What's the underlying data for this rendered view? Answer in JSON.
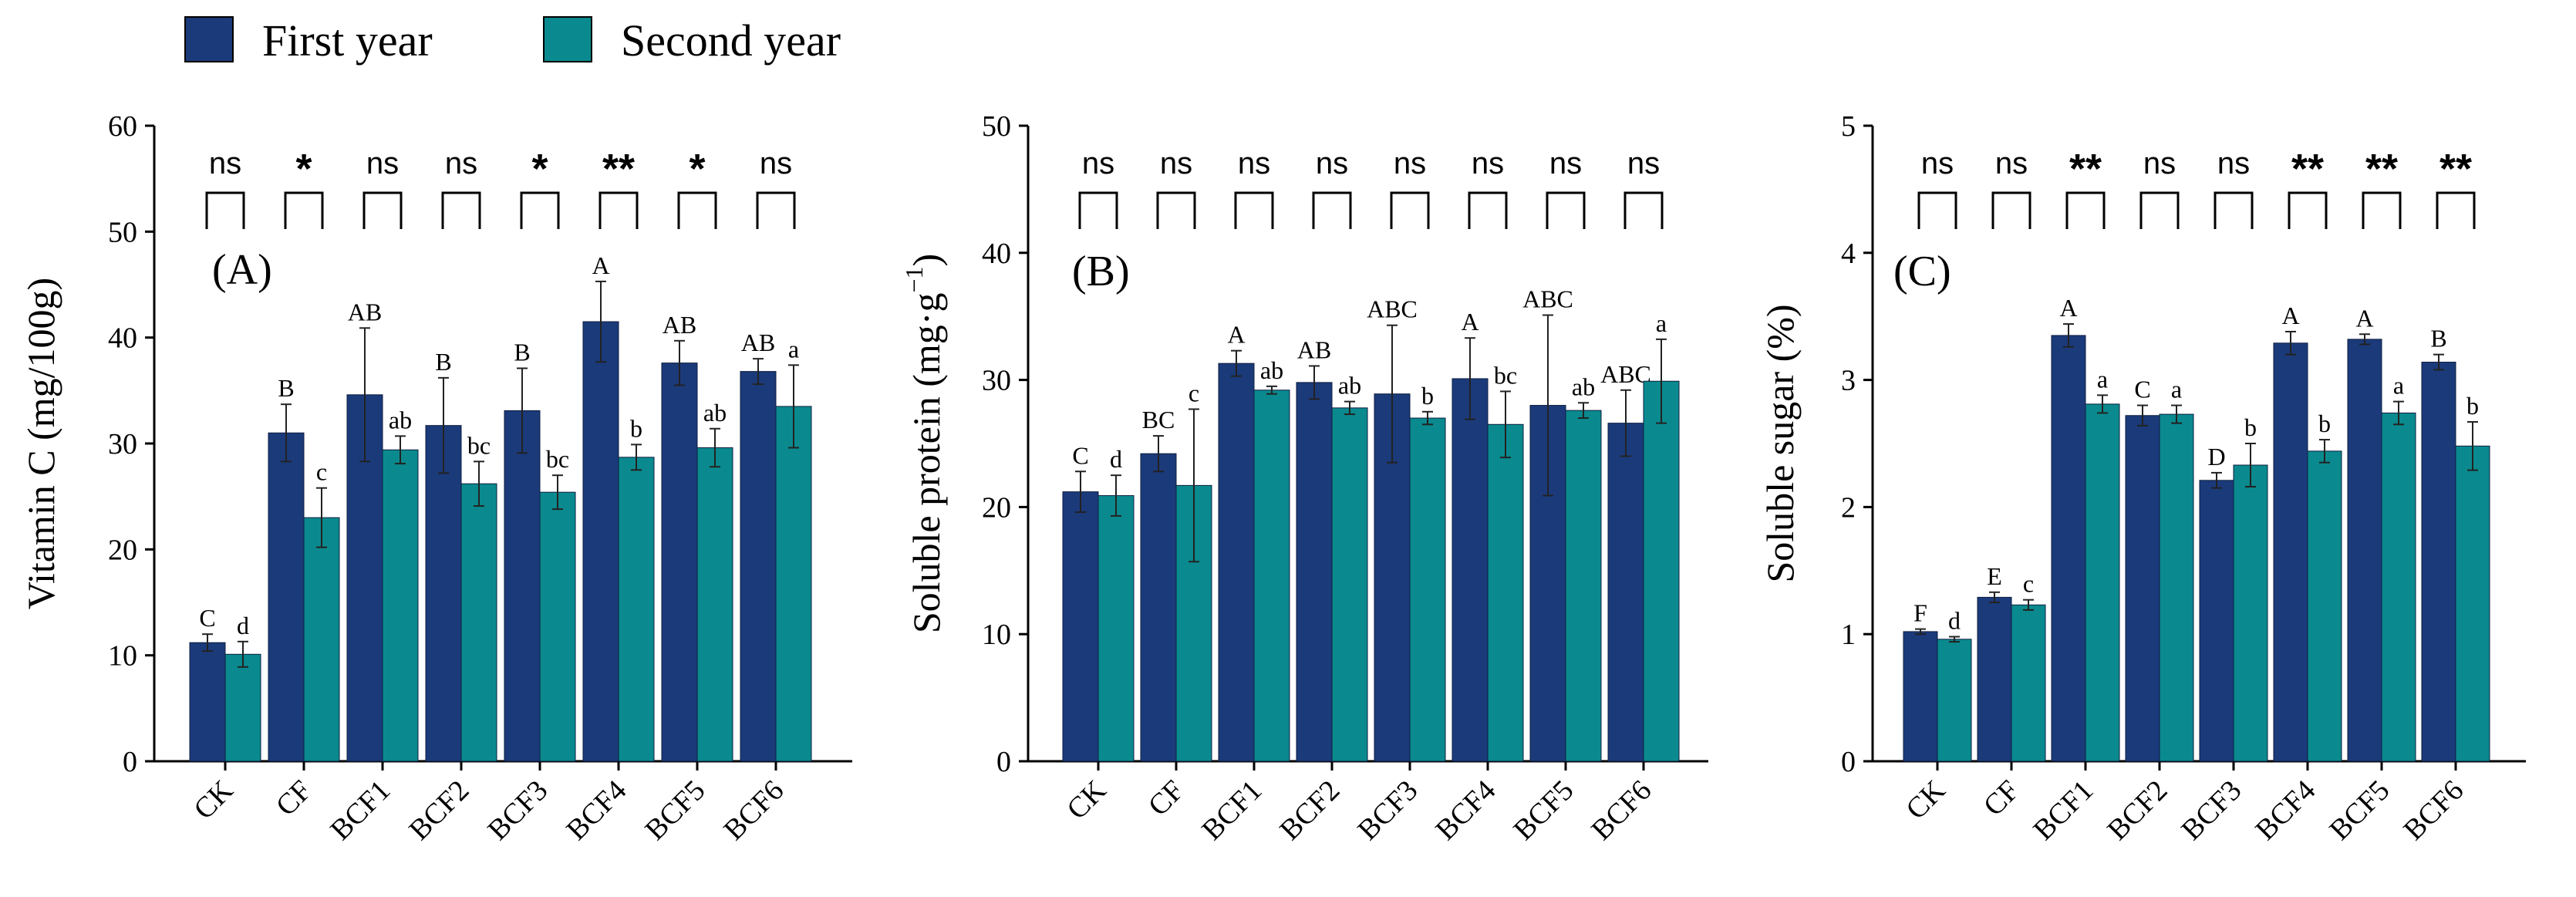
{
  "legend": {
    "first_label": "First year",
    "second_label": "Second year"
  },
  "colors": {
    "first": "#1b3a7a",
    "second": "#0a8a8e",
    "axis": "#000000"
  },
  "chart_data": [
    {
      "type": "bar",
      "panel_label": "(A)",
      "ylabel": "Vitamin C (mg/100g)",
      "ylim": [
        0,
        60
      ],
      "yticks": [
        0,
        10,
        20,
        30,
        40,
        50,
        60
      ],
      "categories": [
        "CK",
        "CF",
        "BCF1",
        "BCF2",
        "BCF3",
        "BCF4",
        "BCF5",
        "BCF6"
      ],
      "series": [
        {
          "name": "First year",
          "values": [
            11.2,
            31.0,
            34.6,
            31.7,
            33.1,
            41.5,
            37.6,
            36.8
          ],
          "errors": [
            0.8,
            2.7,
            6.3,
            4.5,
            4.0,
            3.8,
            2.1,
            1.2
          ],
          "letters": [
            "C",
            "B",
            "AB",
            "B",
            "B",
            "A",
            "AB",
            "AB"
          ]
        },
        {
          "name": "Second year",
          "values": [
            10.1,
            23.0,
            29.4,
            26.2,
            25.4,
            28.7,
            29.6,
            33.5
          ],
          "errors": [
            1.2,
            2.8,
            1.3,
            2.1,
            1.6,
            1.2,
            1.8,
            3.9
          ],
          "letters": [
            "d",
            "c",
            "ab",
            "bc",
            "bc",
            "b",
            "ab",
            "a"
          ]
        }
      ],
      "significance": [
        "ns",
        "*",
        "ns",
        "ns",
        "*",
        "**",
        "*",
        "ns"
      ]
    },
    {
      "type": "bar",
      "panel_label": "(B)",
      "ylabel": "Soluble protein (mg·g⁻¹)",
      "ylim": [
        0,
        50
      ],
      "yticks": [
        0,
        10,
        20,
        30,
        40,
        50
      ],
      "categories": [
        "CK",
        "CF",
        "BCF1",
        "BCF2",
        "BCF3",
        "BCF4",
        "BCF5",
        "BCF6"
      ],
      "series": [
        {
          "name": "First year",
          "values": [
            21.2,
            24.2,
            31.3,
            29.8,
            28.9,
            30.1,
            28.0,
            26.6
          ],
          "errors": [
            1.6,
            1.4,
            1.0,
            1.3,
            5.4,
            3.2,
            7.1,
            2.6
          ],
          "letters": [
            "C",
            "BC",
            "A",
            "AB",
            "ABC",
            "A",
            "ABC",
            "ABC"
          ]
        },
        {
          "name": "Second year",
          "values": [
            20.9,
            21.7,
            29.2,
            27.8,
            27.0,
            26.5,
            27.6,
            29.9
          ],
          "errors": [
            1.6,
            6.0,
            0.3,
            0.5,
            0.5,
            2.6,
            0.6,
            3.3
          ],
          "letters": [
            "d",
            "c",
            "ab",
            "ab",
            "b",
            "bc",
            "ab",
            "a"
          ]
        }
      ],
      "significance": [
        "ns",
        "ns",
        "ns",
        "ns",
        "ns",
        "ns",
        "ns",
        "ns"
      ]
    },
    {
      "type": "bar",
      "panel_label": "(C)",
      "ylabel": "Soluble sugar (%)",
      "ylim": [
        0,
        5
      ],
      "yticks": [
        0,
        1,
        2,
        3,
        4,
        5
      ],
      "categories": [
        "CK",
        "CF",
        "BCF1",
        "BCF2",
        "BCF3",
        "BCF4",
        "BCF5",
        "BCF6"
      ],
      "series": [
        {
          "name": "First year",
          "values": [
            1.02,
            1.29,
            3.35,
            2.72,
            2.21,
            3.29,
            3.32,
            3.14
          ],
          "errors": [
            0.02,
            0.04,
            0.09,
            0.08,
            0.06,
            0.09,
            0.04,
            0.06
          ],
          "letters": [
            "F",
            "E",
            "A",
            "C",
            "D",
            "A",
            "A",
            "B"
          ]
        },
        {
          "name": "Second year",
          "values": [
            0.96,
            1.23,
            2.81,
            2.73,
            2.33,
            2.44,
            2.74,
            2.48
          ],
          "errors": [
            0.02,
            0.04,
            0.07,
            0.07,
            0.17,
            0.09,
            0.09,
            0.19
          ],
          "letters": [
            "d",
            "c",
            "a",
            "a",
            "b",
            "b",
            "a",
            "b"
          ]
        }
      ],
      "significance": [
        "ns",
        "ns",
        "**",
        "ns",
        "ns",
        "**",
        "**",
        "**"
      ]
    }
  ]
}
